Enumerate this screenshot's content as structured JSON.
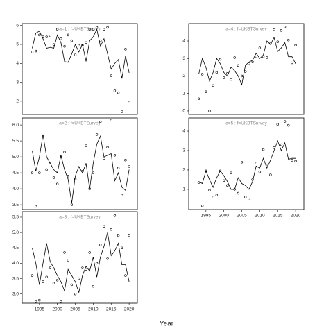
{
  "xlabel": "Year",
  "x": [
    1993,
    1994,
    1995,
    1996,
    1997,
    1998,
    1999,
    2000,
    2001,
    2002,
    2003,
    2004,
    2005,
    2006,
    2007,
    2008,
    2009,
    2010,
    2011,
    2012,
    2013,
    2014,
    2015,
    2016,
    2017,
    2018,
    2019,
    2020
  ],
  "xlim": [
    1990.2,
    2022.3
  ],
  "xticks": [
    1995,
    2000,
    2005,
    2010,
    2015,
    2020
  ],
  "chart_data": [
    {
      "type": "line",
      "title": "a=1 : f=UKBTSurvey",
      "ylim": [
        1.3,
        6.1
      ],
      "yticks": [
        2,
        3,
        4,
        5,
        6
      ],
      "show_xticks": false,
      "values": [
        4.8,
        5.6,
        5.7,
        5.3,
        4.8,
        4.85,
        4.8,
        5.5,
        5.1,
        4.1,
        4.05,
        4.5,
        5.0,
        4.6,
        5.0,
        4.1,
        5.2,
        5.4,
        5.8,
        4.9,
        5.3,
        4.5,
        3.7,
        4.0,
        4.2,
        3.2,
        4.4,
        3.5
      ],
      "points": [
        4.6,
        4.65,
        5.5,
        5.4,
        5.4,
        5.45,
        5.0,
        5.8,
        5.3,
        4.9,
        5.5,
        5.2,
        4.45,
        4.95,
        4.95,
        5.1,
        5.8,
        5.8,
        5.9,
        5.2,
        5.8,
        5.9,
        3.35,
        2.55,
        2.45,
        1.45,
        4.75,
        1.95
      ]
    },
    {
      "type": "line",
      "title": "a=2 : f=UKBTSurvey",
      "ylim": [
        3.35,
        6.22
      ],
      "yticks": [
        {
          "value": 3.5,
          "label": "3.5"
        },
        {
          "value": 4,
          "label": "4.0"
        },
        {
          "value": 4.5,
          "label": "4.5"
        },
        {
          "value": 5,
          "label": "5.0"
        },
        {
          "value": 5.5,
          "label": "5.5"
        },
        {
          "value": 6,
          "label": "6.0"
        }
      ],
      "show_xticks": false,
      "values": [
        5.2,
        4.55,
        5.0,
        5.7,
        5.0,
        4.8,
        4.6,
        4.5,
        5.05,
        4.6,
        4.3,
        3.55,
        4.4,
        4.7,
        4.5,
        4.8,
        4.0,
        4.8,
        5.4,
        5.65,
        5.0,
        5.05,
        5.1,
        4.25,
        4.5,
        4.05,
        3.95,
        4.6
      ],
      "points": [
        4.5,
        3.45,
        4.5,
        5.65,
        4.6,
        4.8,
        4.35,
        4.15,
        5.0,
        5.15,
        4.4,
        3.5,
        4.3,
        4.65,
        4.55,
        5.35,
        4.0,
        4.5,
        5.7,
        6.1,
        4.95,
        5.3,
        6.15,
        5.05,
        4.65,
        3.8,
        4.9,
        4.7
      ]
    },
    {
      "type": "line",
      "title": "a=3 : f=UKBTSurvey",
      "ylim": [
        2.7,
        5.68
      ],
      "yticks": [
        {
          "value": 3,
          "label": "3.0"
        },
        {
          "value": 3.5,
          "label": "3.5"
        },
        {
          "value": 4,
          "label": "4.0"
        },
        {
          "value": 4.5,
          "label": "4.5"
        },
        {
          "value": 5,
          "label": "5.0"
        },
        {
          "value": 5.5,
          "label": "5.5"
        }
      ],
      "show_xticks": true,
      "values": [
        4.5,
        4.0,
        3.3,
        4.0,
        4.65,
        4.05,
        3.85,
        3.6,
        3.4,
        3.1,
        3.8,
        3.6,
        3.4,
        3.05,
        3.6,
        3.9,
        3.75,
        4.2,
        3.55,
        4.2,
        4.55,
        5.0,
        4.25,
        4.4,
        4.65,
        3.95,
        3.95,
        3.4
      ],
      "points": [
        3.6,
        2.75,
        2.8,
        3.4,
        3.55,
        3.85,
        3.35,
        3.45,
        2.75,
        4.35,
        4.1,
        3.3,
        3.0,
        3.5,
        3.85,
        3.8,
        4.35,
        3.25,
        4.0,
        4.6,
        5.2,
        4.15,
        5.1,
        5.55,
        4.9,
        4.5,
        3.6,
        4.9
      ]
    },
    {
      "type": "line",
      "title": "a=4 : f=UKBTSurvey",
      "ylim": [
        -0.2,
        4.99
      ],
      "yticks": [
        0,
        1,
        2,
        3,
        4
      ],
      "show_xticks": false,
      "values": [
        2.1,
        3.0,
        2.5,
        1.7,
        2.2,
        3.0,
        2.7,
        2.2,
        2.0,
        2.5,
        2.3,
        2.0,
        1.5,
        2.6,
        2.8,
        2.9,
        3.3,
        3.0,
        3.2,
        4.0,
        3.8,
        4.2,
        3.4,
        3.6,
        3.9,
        3.1,
        3.1,
        2.7
      ],
      "points": [
        0.7,
        2.1,
        1.1,
        0.0,
        1.45,
        2.2,
        2.95,
        1.9,
        2.15,
        1.8,
        3.05,
        2.6,
        2.0,
        2.25,
        2.7,
        2.8,
        3.1,
        3.6,
        3.1,
        3.05,
        3.85,
        4.65,
        3.95,
        4.6,
        4.8,
        4.05,
        2.75,
        3.75
      ]
    },
    {
      "type": "line",
      "title": "a=5 : f=UKBTSurvey",
      "ylim": [
        -0.04,
        4.68
      ],
      "yticks": [
        1,
        2,
        3,
        4
      ],
      "show_xticks": true,
      "values": [
        1.4,
        1.3,
        1.95,
        1.5,
        1.1,
        1.6,
        1.95,
        1.7,
        1.4,
        1.0,
        1.0,
        1.6,
        1.3,
        1.2,
        1.0,
        1.4,
        2.2,
        2.1,
        2.6,
        2.1,
        2.5,
        3.0,
        3.5,
        3.0,
        3.4,
        2.55,
        2.6,
        2.6
      ],
      "points": [
        1.35,
        0.15,
        1.95,
        0.95,
        0.6,
        0.7,
        1.95,
        1.45,
        1.2,
        1.85,
        1.0,
        0.8,
        2.4,
        0.6,
        0.5,
        1.5,
        2.35,
        1.9,
        3.05,
        2.2,
        1.75,
        3.15,
        4.35,
        3.3,
        4.5,
        4.3,
        2.5,
        2.45
      ]
    }
  ]
}
